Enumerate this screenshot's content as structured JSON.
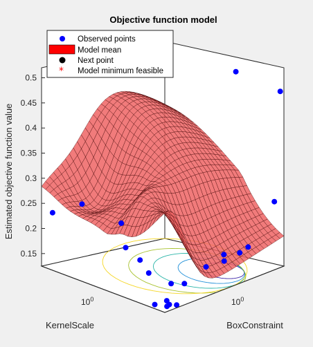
{
  "chart_data": {
    "type": "surface3d",
    "title": "Objective function model",
    "zlabel": "Estimated objective function value",
    "xlabel": "KernelScale",
    "ylabel": "BoxConstraint",
    "zticks": [
      {
        "value": 0.15,
        "label": "0.15"
      },
      {
        "value": 0.2,
        "label": "0.2"
      },
      {
        "value": 0.25,
        "label": "0.25"
      },
      {
        "value": 0.3,
        "label": "0.3"
      },
      {
        "value": 0.35,
        "label": "0.35"
      },
      {
        "value": 0.4,
        "label": "0.4"
      },
      {
        "value": 0.45,
        "label": "0.45"
      },
      {
        "value": 0.5,
        "label": "0.5"
      }
    ],
    "zlim": [
      0.125,
      0.52
    ],
    "x_tick_base": "10",
    "x_tick_exp": "0",
    "y_tick_base": "10",
    "y_tick_exp": "0",
    "legend": [
      {
        "label": "Observed points",
        "marker": "filled-circle",
        "color": "#0000ff"
      },
      {
        "label": "Model mean",
        "marker": "filled-rectangle",
        "color": "#ff0000"
      },
      {
        "label": "Next point",
        "marker": "filled-circle",
        "color": "#000000"
      },
      {
        "label": "Model minimum feasible",
        "marker": "asterisk",
        "color": "#ff0000"
      }
    ],
    "series": {
      "observed_points": {
        "name": "Observed points",
        "values": [
          0.236,
          0.268,
          0.252,
          0.185,
          0.151,
          0.137,
          0.126,
          0.126,
          0.127,
          0.126,
          0.128,
          0.14,
          0.139,
          0.165,
          0.172,
          0.172,
          0.182,
          0.187,
          0.259,
          0.478,
          0.472
        ]
      }
    },
    "colors": {
      "surface": "#ef6464",
      "surface_edge": "#3a0000",
      "observed": "#0000ff",
      "contour": [
        "#3e26a8",
        "#1f8fd8",
        "#2ab5a8",
        "#a8c22f",
        "#f5d623"
      ]
    }
  }
}
